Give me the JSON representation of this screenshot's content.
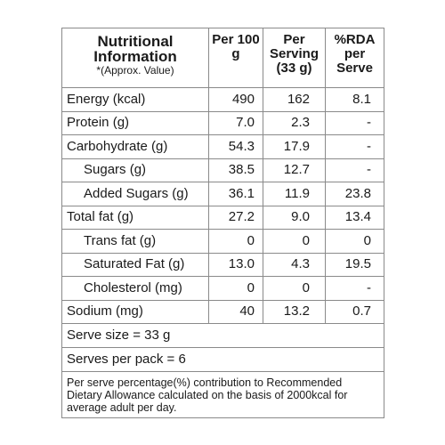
{
  "header": {
    "col1_title": "Nutritional Information",
    "col1_sub": "*(Approx. Value)",
    "col2": "Per 100 g",
    "col3": "Per Serving (33 g)",
    "col4": "%RDA per Serve"
  },
  "rows": [
    {
      "label": "Energy (kcal)",
      "per100": "490",
      "perServing": "162",
      "rda": "8.1"
    },
    {
      "label": "Protein (g)",
      "per100": "7.0",
      "perServing": "2.3",
      "rda": "-"
    },
    {
      "label": "Carbohydrate (g)",
      "per100": "54.3",
      "perServing": "17.9",
      "rda": "-"
    },
    {
      "label": "Sugars (g)",
      "per100": "38.5",
      "perServing": "12.7",
      "rda": "-"
    },
    {
      "label": "Added Sugars (g)",
      "per100": "36.1",
      "perServing": "11.9",
      "rda": "23.8"
    },
    {
      "label": "Total fat (g)",
      "per100": "27.2",
      "perServing": "9.0",
      "rda": "13.4"
    },
    {
      "label": "Trans fat (g)",
      "per100": "0",
      "perServing": "0",
      "rda": "0"
    },
    {
      "label": "Saturated Fat (g)",
      "per100": "13.0",
      "perServing": "4.3",
      "rda": "19.5"
    },
    {
      "label": "Cholesterol (mg)",
      "per100": "0",
      "perServing": "0",
      "rda": "-"
    },
    {
      "label": "Sodium (mg)",
      "per100": "40",
      "perServing": "13.2",
      "rda": "0.7"
    }
  ],
  "serve_size": "Serve size = 33 g",
  "serves_per_pack": "Serves per pack = 6",
  "footnote": "Per serve percentage(%) contribution to Recommended Dietary Allowance calculated on the basis of 2000kcal for average adult per day."
}
